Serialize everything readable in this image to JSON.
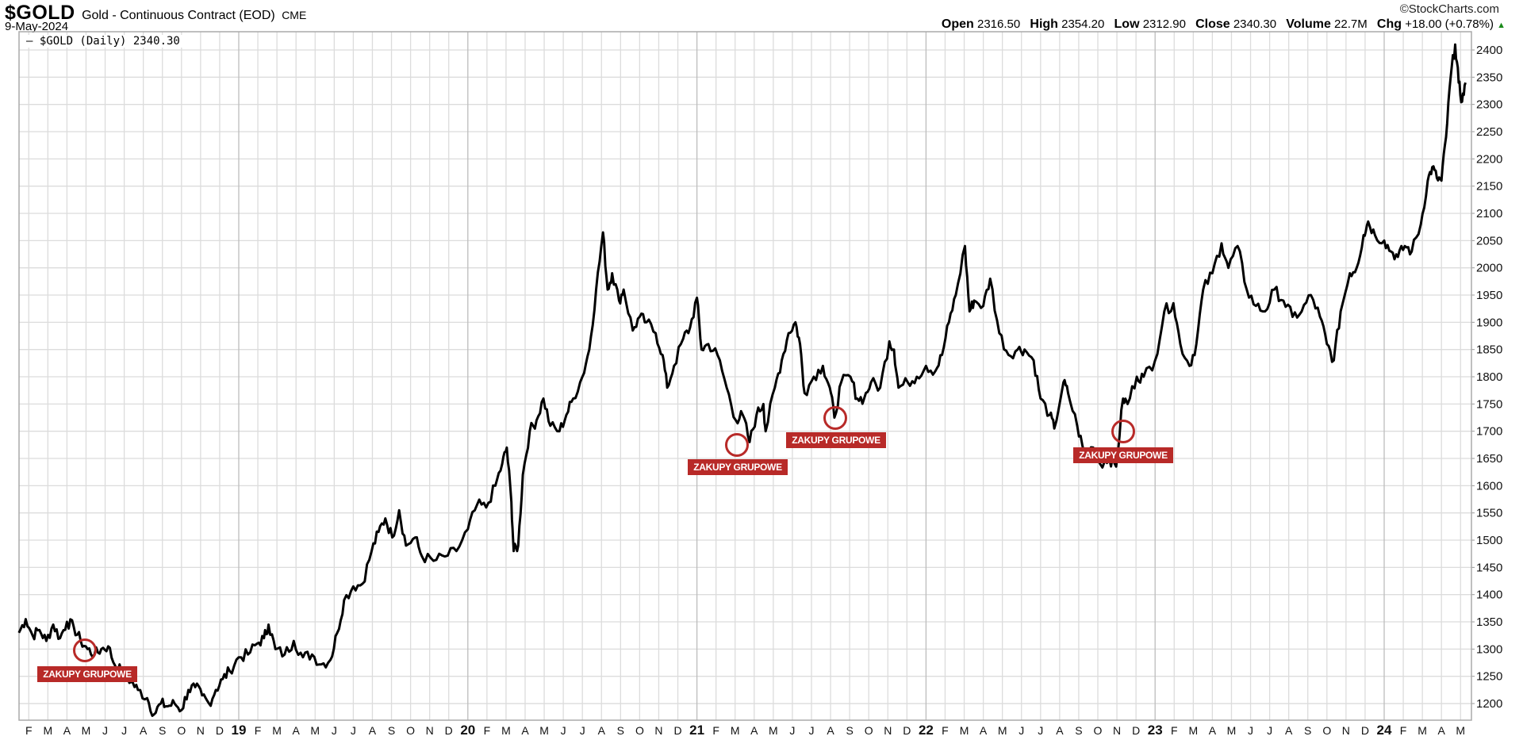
{
  "header": {
    "symbol": "$GOLD",
    "description": "Gold - Continuous Contract (EOD)",
    "exchange": "CME",
    "date": "9-May-2024",
    "copyright": "©StockCharts.com"
  },
  "quote": {
    "open_label": "Open",
    "open": "2316.50",
    "high_label": "High",
    "high": "2354.20",
    "low_label": "Low",
    "low": "2312.90",
    "close_label": "Close",
    "close": "2340.30",
    "volume_label": "Volume",
    "volume": "22.7M",
    "chg_label": "Chg",
    "chg": "+18.00 (+0.78%)",
    "up_icon": "▲"
  },
  "legend": "— $GOLD (Daily) 2340.30",
  "annotations": [
    {
      "text": "ZAKUPY GRUPOWE"
    },
    {
      "text": "ZAKUPY GRUPOWE"
    },
    {
      "text": "ZAKUPY GRUPOWE"
    },
    {
      "text": "ZAKUPY GRUPOWE"
    }
  ],
  "chart_data": {
    "type": "line",
    "title": "$GOLD Gold - Continuous Contract (EOD) CME",
    "series_name": "$GOLD (Daily)",
    "line_color": "#000000",
    "annotation_color": "#b82a28",
    "ylim": [
      1170,
      2430
    ],
    "xlim": [
      2018.04,
      2024.38
    ],
    "y_ticks": [
      1200,
      1250,
      1300,
      1350,
      1400,
      1450,
      1500,
      1550,
      1600,
      1650,
      1700,
      1750,
      1800,
      1850,
      1900,
      1950,
      2000,
      2050,
      2100,
      2150,
      2200,
      2250,
      2300,
      2350,
      2400
    ],
    "x_ticks": [
      "F",
      "M",
      "A",
      "M",
      "J",
      "J",
      "A",
      "S",
      "O",
      "N",
      "D",
      "19",
      "F",
      "M",
      "A",
      "M",
      "J",
      "J",
      "A",
      "S",
      "O",
      "N",
      "D",
      "20",
      "F",
      "M",
      "A",
      "M",
      "J",
      "J",
      "A",
      "S",
      "O",
      "N",
      "D",
      "21",
      "F",
      "M",
      "A",
      "M",
      "J",
      "J",
      "A",
      "S",
      "O",
      "N",
      "D",
      "22",
      "F",
      "M",
      "A",
      "M",
      "J",
      "J",
      "A",
      "S",
      "O",
      "N",
      "D",
      "23",
      "F",
      "M",
      "A",
      "M",
      "J",
      "J",
      "A",
      "S",
      "O",
      "N",
      "D",
      "24",
      "F",
      "M",
      "A",
      "M"
    ],
    "grid": true,
    "points": [
      [
        2018.04,
        1330
      ],
      [
        2018.07,
        1355
      ],
      [
        2018.1,
        1325
      ],
      [
        2018.13,
        1335
      ],
      [
        2018.16,
        1315
      ],
      [
        2018.19,
        1345
      ],
      [
        2018.22,
        1320
      ],
      [
        2018.25,
        1350
      ],
      [
        2018.28,
        1340
      ],
      [
        2018.31,
        1315
      ],
      [
        2018.34,
        1300
      ],
      [
        2018.37,
        1290
      ],
      [
        2018.4,
        1300
      ],
      [
        2018.43,
        1305
      ],
      [
        2018.46,
        1270
      ],
      [
        2018.5,
        1255
      ],
      [
        2018.53,
        1240
      ],
      [
        2018.56,
        1225
      ],
      [
        2018.6,
        1210
      ],
      [
        2018.63,
        1180
      ],
      [
        2018.66,
        1200
      ],
      [
        2018.69,
        1195
      ],
      [
        2018.72,
        1200
      ],
      [
        2018.75,
        1188
      ],
      [
        2018.78,
        1225
      ],
      [
        2018.81,
        1230
      ],
      [
        2018.84,
        1215
      ],
      [
        2018.87,
        1200
      ],
      [
        2018.9,
        1225
      ],
      [
        2018.93,
        1245
      ],
      [
        2018.96,
        1260
      ],
      [
        2019.0,
        1285
      ],
      [
        2019.04,
        1290
      ],
      [
        2019.08,
        1310
      ],
      [
        2019.11,
        1320
      ],
      [
        2019.13,
        1345
      ],
      [
        2019.16,
        1300
      ],
      [
        2019.2,
        1290
      ],
      [
        2019.24,
        1315
      ],
      [
        2019.28,
        1285
      ],
      [
        2019.32,
        1290
      ],
      [
        2019.36,
        1272
      ],
      [
        2019.4,
        1280
      ],
      [
        2019.43,
        1330
      ],
      [
        2019.46,
        1390
      ],
      [
        2019.5,
        1415
      ],
      [
        2019.54,
        1420
      ],
      [
        2019.58,
        1480
      ],
      [
        2019.61,
        1515
      ],
      [
        2019.64,
        1540
      ],
      [
        2019.67,
        1505
      ],
      [
        2019.7,
        1555
      ],
      [
        2019.73,
        1490
      ],
      [
        2019.77,
        1505
      ],
      [
        2019.8,
        1470
      ],
      [
        2019.85,
        1462
      ],
      [
        2019.9,
        1470
      ],
      [
        2019.95,
        1480
      ],
      [
        2020.0,
        1520
      ],
      [
        2020.04,
        1565
      ],
      [
        2020.08,
        1560
      ],
      [
        2020.12,
        1600
      ],
      [
        2020.15,
        1640
      ],
      [
        2020.17,
        1670
      ],
      [
        2020.19,
        1570
      ],
      [
        2020.2,
        1480
      ],
      [
        2020.22,
        1490
      ],
      [
        2020.24,
        1620
      ],
      [
        2020.27,
        1700
      ],
      [
        2020.3,
        1720
      ],
      [
        2020.33,
        1760
      ],
      [
        2020.36,
        1710
      ],
      [
        2020.4,
        1700
      ],
      [
        2020.43,
        1730
      ],
      [
        2020.46,
        1760
      ],
      [
        2020.5,
        1800
      ],
      [
        2020.53,
        1850
      ],
      [
        2020.56,
        1960
      ],
      [
        2020.59,
        2065
      ],
      [
        2020.61,
        1960
      ],
      [
        2020.63,
        1990
      ],
      [
        2020.66,
        1940
      ],
      [
        2020.68,
        1960
      ],
      [
        2020.72,
        1885
      ],
      [
        2020.75,
        1910
      ],
      [
        2020.78,
        1900
      ],
      [
        2020.82,
        1880
      ],
      [
        2020.85,
        1840
      ],
      [
        2020.87,
        1780
      ],
      [
        2020.9,
        1820
      ],
      [
        2020.94,
        1870
      ],
      [
        2020.97,
        1890
      ],
      [
        2021.0,
        1945
      ],
      [
        2021.02,
        1850
      ],
      [
        2021.05,
        1860
      ],
      [
        2021.09,
        1840
      ],
      [
        2021.13,
        1780
      ],
      [
        2021.17,
        1720
      ],
      [
        2021.2,
        1730
      ],
      [
        2021.23,
        1680
      ],
      [
        2021.26,
        1730
      ],
      [
        2021.29,
        1750
      ],
      [
        2021.3,
        1700
      ],
      [
        2021.34,
        1780
      ],
      [
        2021.37,
        1830
      ],
      [
        2021.4,
        1880
      ],
      [
        2021.43,
        1900
      ],
      [
        2021.45,
        1860
      ],
      [
        2021.47,
        1770
      ],
      [
        2021.51,
        1800
      ],
      [
        2021.55,
        1820
      ],
      [
        2021.58,
        1780
      ],
      [
        2021.6,
        1725
      ],
      [
        2021.63,
        1790
      ],
      [
        2021.67,
        1800
      ],
      [
        2021.7,
        1760
      ],
      [
        2021.73,
        1760
      ],
      [
        2021.76,
        1790
      ],
      [
        2021.8,
        1780
      ],
      [
        2021.84,
        1865
      ],
      [
        2021.86,
        1850
      ],
      [
        2021.88,
        1780
      ],
      [
        2021.92,
        1790
      ],
      [
        2021.96,
        1800
      ],
      [
        2022.0,
        1820
      ],
      [
        2022.04,
        1810
      ],
      [
        2022.07,
        1840
      ],
      [
        2022.1,
        1900
      ],
      [
        2022.13,
        1950
      ],
      [
        2022.17,
        2040
      ],
      [
        2022.19,
        1920
      ],
      [
        2022.21,
        1940
      ],
      [
        2022.25,
        1930
      ],
      [
        2022.28,
        1980
      ],
      [
        2022.32,
        1880
      ],
      [
        2022.36,
        1840
      ],
      [
        2022.4,
        1850
      ],
      [
        2022.43,
        1850
      ],
      [
        2022.47,
        1830
      ],
      [
        2022.5,
        1760
      ],
      [
        2022.54,
        1730
      ],
      [
        2022.56,
        1705
      ],
      [
        2022.6,
        1790
      ],
      [
        2022.62,
        1770
      ],
      [
        2022.66,
        1710
      ],
      [
        2022.69,
        1660
      ],
      [
        2022.73,
        1670
      ],
      [
        2022.76,
        1640
      ],
      [
        2022.8,
        1650
      ],
      [
        2022.83,
        1635
      ],
      [
        2022.86,
        1760
      ],
      [
        2022.88,
        1750
      ],
      [
        2022.92,
        1800
      ],
      [
        2022.95,
        1800
      ],
      [
        2023.0,
        1830
      ],
      [
        2023.04,
        1920
      ],
      [
        2023.08,
        1935
      ],
      [
        2023.11,
        1860
      ],
      [
        2023.15,
        1820
      ],
      [
        2023.18,
        1860
      ],
      [
        2023.21,
        1960
      ],
      [
        2023.25,
        1990
      ],
      [
        2023.29,
        2045
      ],
      [
        2023.32,
        2000
      ],
      [
        2023.36,
        2040
      ],
      [
        2023.4,
        1960
      ],
      [
        2023.44,
        1930
      ],
      [
        2023.48,
        1920
      ],
      [
        2023.52,
        1960
      ],
      [
        2023.56,
        1940
      ],
      [
        2023.6,
        1910
      ],
      [
        2023.64,
        1920
      ],
      [
        2023.68,
        1950
      ],
      [
        2023.72,
        1910
      ],
      [
        2023.75,
        1860
      ],
      [
        2023.78,
        1830
      ],
      [
        2023.81,
        1920
      ],
      [
        2023.85,
        1990
      ],
      [
        2023.88,
        2000
      ],
      [
        2023.91,
        2060
      ],
      [
        2023.93,
        2085
      ],
      [
        2023.96,
        2060
      ],
      [
        2024.0,
        2050
      ],
      [
        2024.03,
        2030
      ],
      [
        2024.06,
        2020
      ],
      [
        2024.09,
        2040
      ],
      [
        2024.12,
        2030
      ],
      [
        2024.16,
        2080
      ],
      [
        2024.19,
        2160
      ],
      [
        2024.21,
        2185
      ],
      [
        2024.23,
        2165
      ],
      [
        2024.25,
        2160
      ],
      [
        2024.27,
        2240
      ],
      [
        2024.29,
        2350
      ],
      [
        2024.31,
        2410
      ],
      [
        2024.325,
        2340
      ],
      [
        2024.34,
        2305
      ],
      [
        2024.355,
        2340
      ]
    ]
  }
}
